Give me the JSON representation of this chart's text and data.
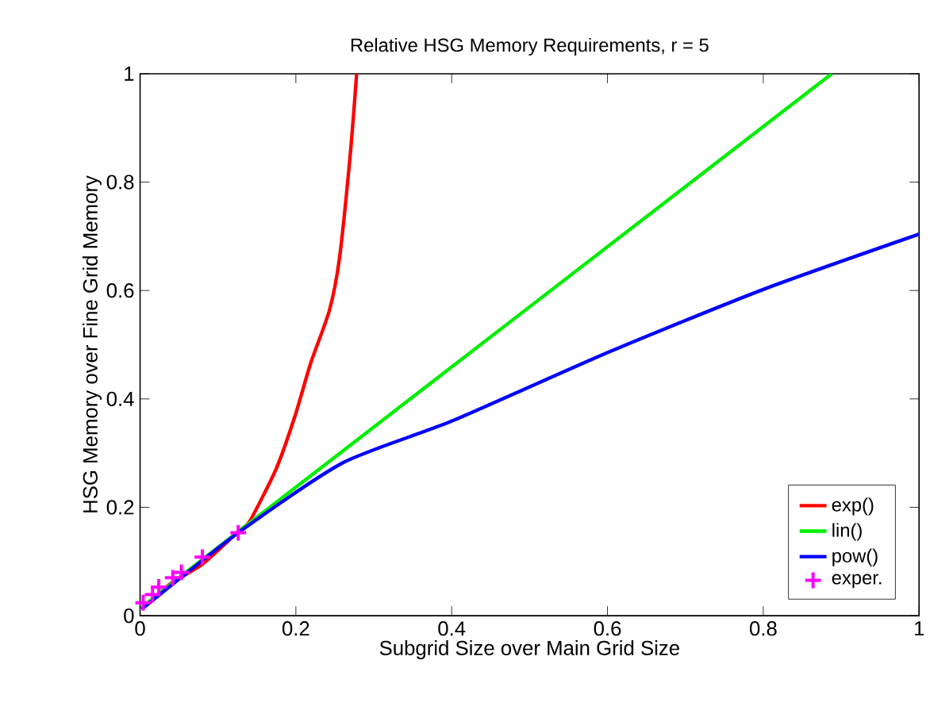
{
  "chart_data": {
    "type": "line",
    "title": "Relative HSG Memory Requirements, r = 5",
    "xlabel": "Subgrid Size over Main Grid Size",
    "ylabel": "HSG Memory over Fine Grid Memory",
    "xlim": [
      0,
      1
    ],
    "ylim": [
      0,
      1
    ],
    "xticks": [
      0,
      0.2,
      0.4,
      0.6,
      0.8,
      1
    ],
    "yticks": [
      0,
      0.2,
      0.4,
      0.6,
      0.8,
      1
    ],
    "grid": false,
    "legend": "bottom right",
    "line_style": "solid",
    "series": [
      {
        "name": "exp()",
        "color": "#ff0000",
        "marker": "none",
        "x": [
          0.002,
          0.04,
          0.08,
          0.126,
          0.141,
          0.175,
          0.199,
          0.219,
          0.243,
          0.256,
          0.27,
          0.278
        ],
        "values": [
          0.012,
          0.06,
          0.095,
          0.155,
          0.175,
          0.272,
          0.369,
          0.466,
          0.563,
          0.66,
          0.854,
          1
        ]
      },
      {
        "name": "lin()",
        "color": "#00ee00",
        "marker": "none",
        "x": [
          0.002,
          0.126,
          0.888
        ],
        "values": [
          0.015,
          0.155,
          1
        ]
      },
      {
        "name": "pow()",
        "color": "#0000ff",
        "marker": "none",
        "x": [
          0.002,
          0.126,
          0.26,
          0.4,
          0.601,
          0.8,
          1
        ],
        "values": [
          0.012,
          0.153,
          0.282,
          0.359,
          0.486,
          0.602,
          0.704
        ]
      },
      {
        "name": "exper.",
        "color": "#ff00ff",
        "type": "scatter",
        "marker": "cross",
        "x": [
          0.004,
          0.016,
          0.024,
          0.042,
          0.053,
          0.08,
          0.126
        ],
        "values": [
          0.024,
          0.039,
          0.053,
          0.07,
          0.08,
          0.108,
          0.153
        ]
      }
    ]
  }
}
